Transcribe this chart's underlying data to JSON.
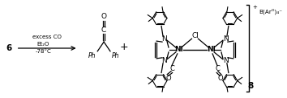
{
  "bg_color": "#ffffff",
  "figsize": [
    3.54,
    1.22
  ],
  "dpi": 100,
  "label_6": "6",
  "arrow_above": "excess CO",
  "arrow_below1": "Et₂O",
  "arrow_below2": "-78°C",
  "plus": "+",
  "comp8": "8",
  "barf": "B(Arᴼ)₄⁻",
  "plus_ion": "+"
}
